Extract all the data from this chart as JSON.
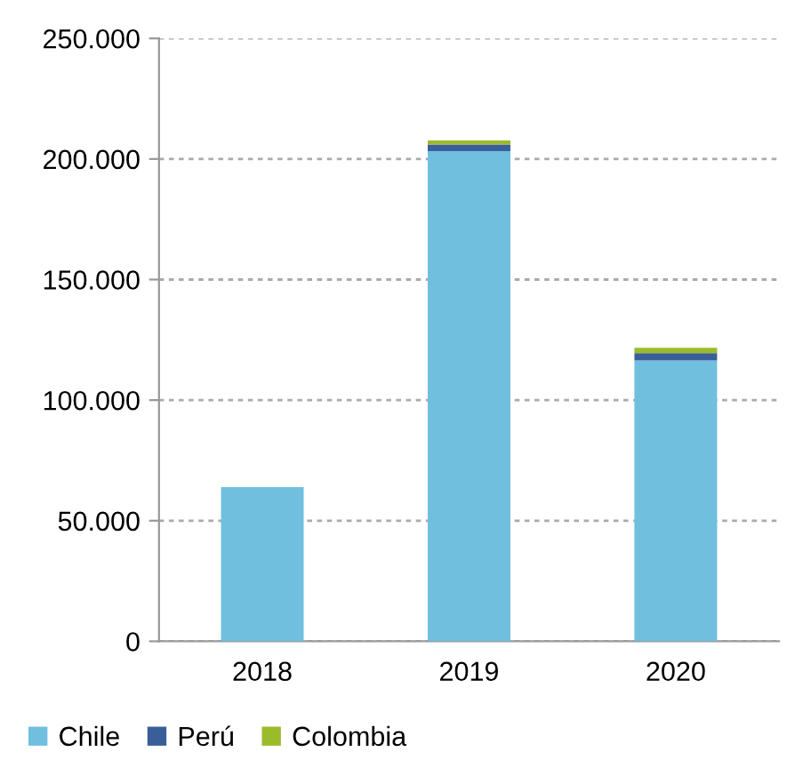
{
  "chart_data": {
    "type": "bar",
    "stacked": true,
    "categories": [
      "2018",
      "2019",
      "2020"
    ],
    "series": [
      {
        "name": "Chile",
        "color": "#70bfdf",
        "values": [
          63900,
          203300,
          116500
        ]
      },
      {
        "name": "Perú",
        "color": "#3a5f98",
        "values": [
          0,
          2700,
          3000
        ]
      },
      {
        "name": "Colombia",
        "color": "#9bbb2a",
        "values": [
          0,
          1700,
          2200
        ]
      }
    ],
    "ylim": [
      0,
      250000
    ],
    "yticks": [
      {
        "value": 0,
        "label": "0"
      },
      {
        "value": 50000,
        "label": "50.000"
      },
      {
        "value": 100000,
        "label": "100.000"
      },
      {
        "value": 150000,
        "label": "150.000"
      },
      {
        "value": 200000,
        "label": "200.000"
      },
      {
        "value": 250000,
        "label": "250.000"
      }
    ],
    "grid": "y",
    "legend": "bottom"
  }
}
